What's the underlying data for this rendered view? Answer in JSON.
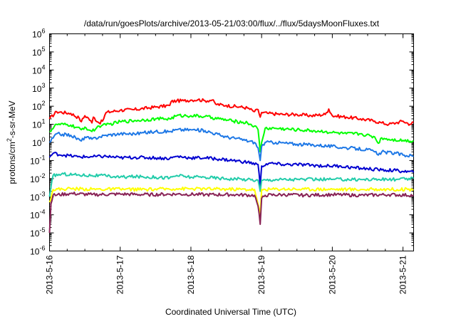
{
  "chart_data": {
    "type": "line",
    "title": "/data/run/goesPlots/archive/2013-05-21/03:00/flux/../flux/5daysMoonFluxes.txt",
    "xlabel": "Coordinated Universal Time (UTC)",
    "ylabel": "protons/cm²-s-sr-MeV",
    "ylabel_parts": {
      "base": "protons/cm",
      "sup": "2",
      "tail": "-s-sr-MeV"
    },
    "y_scale": "log",
    "ylim": [
      1e-06,
      1000000.0
    ],
    "y_ticks": [
      {
        "exp": -6,
        "base": "10",
        "sup": "-6"
      },
      {
        "exp": -5,
        "base": "10",
        "sup": "-5"
      },
      {
        "exp": -4,
        "base": "10",
        "sup": "-4"
      },
      {
        "exp": -3,
        "base": "10",
        "sup": "-3"
      },
      {
        "exp": -2,
        "base": "10",
        "sup": "-2"
      },
      {
        "exp": -1,
        "base": "10",
        "sup": "-1"
      },
      {
        "exp": 0,
        "base": "10",
        "sup": "0"
      },
      {
        "exp": 1,
        "base": "10",
        "sup": "1"
      },
      {
        "exp": 2,
        "base": "10",
        "sup": "2"
      },
      {
        "exp": 3,
        "base": "10",
        "sup": "3"
      },
      {
        "exp": 4,
        "base": "10",
        "sup": "4"
      },
      {
        "exp": 5,
        "base": "10",
        "sup": "5"
      },
      {
        "exp": 6,
        "base": "10",
        "sup": "6"
      }
    ],
    "xlim": [
      0,
      5.15
    ],
    "x_ticks": [
      {
        "day": 0,
        "label": "2013-5-16"
      },
      {
        "day": 1,
        "label": "2013-5-17"
      },
      {
        "day": 2,
        "label": "2013-5-18"
      },
      {
        "day": 3,
        "label": "2013-5-19"
      },
      {
        "day": 4,
        "label": "2013-5-20"
      },
      {
        "day": 5,
        "label": "2013-5-21"
      }
    ],
    "grid": false,
    "series": [
      {
        "color": "#ff0000",
        "points": [
          [
            0,
            20
          ],
          [
            0.1,
            50
          ],
          [
            0.3,
            40
          ],
          [
            0.42,
            22
          ],
          [
            0.45,
            14
          ],
          [
            0.5,
            30
          ],
          [
            0.55,
            22
          ],
          [
            0.6,
            12
          ],
          [
            0.62,
            25
          ],
          [
            0.7,
            12
          ],
          [
            0.75,
            15
          ],
          [
            0.8,
            45
          ],
          [
            1.0,
            60
          ],
          [
            1.2,
            65
          ],
          [
            1.5,
            90
          ],
          [
            1.7,
            110
          ],
          [
            1.72,
            180
          ],
          [
            1.8,
            200
          ],
          [
            1.9,
            200
          ],
          [
            2.0,
            220
          ],
          [
            2.1,
            230
          ],
          [
            2.2,
            200
          ],
          [
            2.3,
            220
          ],
          [
            2.35,
            130
          ],
          [
            2.5,
            110
          ],
          [
            2.7,
            90
          ],
          [
            2.8,
            80
          ],
          [
            2.9,
            50
          ],
          [
            2.95,
            65
          ],
          [
            2.98,
            25
          ],
          [
            3.0,
            45
          ],
          [
            3.1,
            40
          ],
          [
            3.3,
            35
          ],
          [
            3.5,
            35
          ],
          [
            3.7,
            30
          ],
          [
            3.9,
            35
          ],
          [
            3.95,
            70
          ],
          [
            4.0,
            30
          ],
          [
            4.2,
            25
          ],
          [
            4.4,
            20
          ],
          [
            4.6,
            15
          ],
          [
            4.7,
            12
          ],
          [
            4.8,
            10
          ],
          [
            4.9,
            12
          ],
          [
            5.0,
            15
          ],
          [
            5.1,
            10
          ],
          [
            5.15,
            13
          ]
        ]
      },
      {
        "color": "#00ff00",
        "points": [
          [
            0,
            4
          ],
          [
            0.1,
            10
          ],
          [
            0.3,
            9
          ],
          [
            0.45,
            5
          ],
          [
            0.5,
            7
          ],
          [
            0.6,
            4
          ],
          [
            0.7,
            8
          ],
          [
            0.75,
            9
          ],
          [
            0.8,
            9
          ],
          [
            1.0,
            14
          ],
          [
            1.2,
            16
          ],
          [
            1.5,
            20
          ],
          [
            1.7,
            20
          ],
          [
            1.8,
            30
          ],
          [
            2.0,
            30
          ],
          [
            2.2,
            27
          ],
          [
            2.4,
            20
          ],
          [
            2.6,
            15
          ],
          [
            2.8,
            12
          ],
          [
            2.9,
            8
          ],
          [
            2.95,
            5
          ],
          [
            2.98,
            0.3
          ],
          [
            3.0,
            1
          ],
          [
            3.05,
            6
          ],
          [
            3.2,
            6
          ],
          [
            3.5,
            5
          ],
          [
            3.7,
            4.5
          ],
          [
            3.9,
            4
          ],
          [
            4.0,
            3.5
          ],
          [
            4.2,
            3
          ],
          [
            4.4,
            3
          ],
          [
            4.6,
            2
          ],
          [
            4.65,
            0.9
          ],
          [
            4.7,
            1.8
          ],
          [
            4.8,
            1.5
          ],
          [
            5.0,
            1.3
          ],
          [
            5.15,
            1.2
          ]
        ]
      },
      {
        "color": "#1e78e6",
        "points": [
          [
            0,
            1
          ],
          [
            0.1,
            3
          ],
          [
            0.3,
            2.5
          ],
          [
            0.45,
            1.2
          ],
          [
            0.5,
            2
          ],
          [
            0.6,
            1.5
          ],
          [
            0.7,
            2
          ],
          [
            0.8,
            2.5
          ],
          [
            1.0,
            3
          ],
          [
            1.2,
            3
          ],
          [
            1.5,
            4
          ],
          [
            1.7,
            4
          ],
          [
            1.8,
            5
          ],
          [
            2.0,
            5
          ],
          [
            2.2,
            4.5
          ],
          [
            2.5,
            2
          ],
          [
            2.7,
            1.5
          ],
          [
            2.9,
            1
          ],
          [
            2.95,
            0.5
          ],
          [
            2.98,
            0.1
          ],
          [
            3.0,
            0.6
          ],
          [
            3.05,
            1
          ],
          [
            3.2,
            1
          ],
          [
            3.5,
            0.8
          ],
          [
            3.8,
            0.7
          ],
          [
            4.0,
            0.6
          ],
          [
            4.2,
            0.5
          ],
          [
            4.5,
            0.4
          ],
          [
            4.6,
            0.3
          ],
          [
            4.65,
            0.2
          ],
          [
            4.7,
            0.3
          ],
          [
            4.9,
            0.25
          ],
          [
            5.0,
            0.2
          ],
          [
            5.15,
            0.18
          ]
        ]
      },
      {
        "color": "#0000d0",
        "points": [
          [
            0,
            0.15
          ],
          [
            0.05,
            0.25
          ],
          [
            0.2,
            0.2
          ],
          [
            0.4,
            0.16
          ],
          [
            0.6,
            0.16
          ],
          [
            0.8,
            0.17
          ],
          [
            1.0,
            0.14
          ],
          [
            1.2,
            0.15
          ],
          [
            1.5,
            0.14
          ],
          [
            1.7,
            0.13
          ],
          [
            1.8,
            0.17
          ],
          [
            2.0,
            0.14
          ],
          [
            2.2,
            0.14
          ],
          [
            2.4,
            0.12
          ],
          [
            2.6,
            0.1
          ],
          [
            2.8,
            0.08
          ],
          [
            2.95,
            0.06
          ],
          [
            2.98,
            0.004
          ],
          [
            3.0,
            0.05
          ],
          [
            3.1,
            0.07
          ],
          [
            3.3,
            0.06
          ],
          [
            3.5,
            0.06
          ],
          [
            3.7,
            0.055
          ],
          [
            3.9,
            0.05
          ],
          [
            4.1,
            0.05
          ],
          [
            4.3,
            0.04
          ],
          [
            4.5,
            0.035
          ],
          [
            4.7,
            0.03
          ],
          [
            4.9,
            0.028
          ],
          [
            5.0,
            0.025
          ],
          [
            5.15,
            0.022
          ]
        ]
      },
      {
        "color": "#22ccaa",
        "points": [
          [
            0,
            0.001
          ],
          [
            0.05,
            0.015
          ],
          [
            0.2,
            0.018
          ],
          [
            0.4,
            0.016
          ],
          [
            0.6,
            0.015
          ],
          [
            0.8,
            0.014
          ],
          [
            1.0,
            0.012
          ],
          [
            1.2,
            0.013
          ],
          [
            1.5,
            0.012
          ],
          [
            1.7,
            0.011
          ],
          [
            1.8,
            0.015
          ],
          [
            2.0,
            0.012
          ],
          [
            2.2,
            0.012
          ],
          [
            2.5,
            0.01
          ],
          [
            2.8,
            0.009
          ],
          [
            2.95,
            0.008
          ],
          [
            2.98,
            0.002
          ],
          [
            3.0,
            0.008
          ],
          [
            3.2,
            0.009
          ],
          [
            3.5,
            0.009
          ],
          [
            3.8,
            0.009
          ],
          [
            4.0,
            0.009
          ],
          [
            4.3,
            0.009
          ],
          [
            4.6,
            0.009
          ],
          [
            4.9,
            0.009
          ],
          [
            5.15,
            0.01
          ]
        ]
      },
      {
        "color": "#ffff00",
        "points": [
          [
            0,
            0.0005
          ],
          [
            0.05,
            0.0025
          ],
          [
            0.3,
            0.0028
          ],
          [
            0.6,
            0.0026
          ],
          [
            1.0,
            0.0026
          ],
          [
            1.4,
            0.0025
          ],
          [
            1.8,
            0.0028
          ],
          [
            2.2,
            0.0027
          ],
          [
            2.6,
            0.0026
          ],
          [
            2.9,
            0.0025
          ],
          [
            2.98,
            0.0001
          ],
          [
            3.0,
            0.0025
          ],
          [
            3.3,
            0.0027
          ],
          [
            3.6,
            0.0026
          ],
          [
            4.0,
            0.0026
          ],
          [
            4.4,
            0.0025
          ],
          [
            4.8,
            0.0026
          ],
          [
            5.15,
            0.0025
          ]
        ]
      },
      {
        "color": "#882255",
        "points": [
          [
            0,
            1e-05
          ],
          [
            0.02,
            0.0004
          ],
          [
            0.05,
            0.0012
          ],
          [
            0.3,
            0.0015
          ],
          [
            0.6,
            0.0013
          ],
          [
            1.0,
            0.0014
          ],
          [
            1.4,
            0.0013
          ],
          [
            1.8,
            0.0014
          ],
          [
            2.2,
            0.0013
          ],
          [
            2.6,
            0.0013
          ],
          [
            2.9,
            0.0012
          ],
          [
            2.95,
            0.0003
          ],
          [
            2.98,
            3e-05
          ],
          [
            3.0,
            0.0008
          ],
          [
            3.05,
            0.0012
          ],
          [
            3.3,
            0.0013
          ],
          [
            3.6,
            0.0012
          ],
          [
            4.0,
            0.0013
          ],
          [
            4.4,
            0.0012
          ],
          [
            4.8,
            0.0013
          ],
          [
            5.15,
            0.0012
          ]
        ]
      }
    ]
  }
}
